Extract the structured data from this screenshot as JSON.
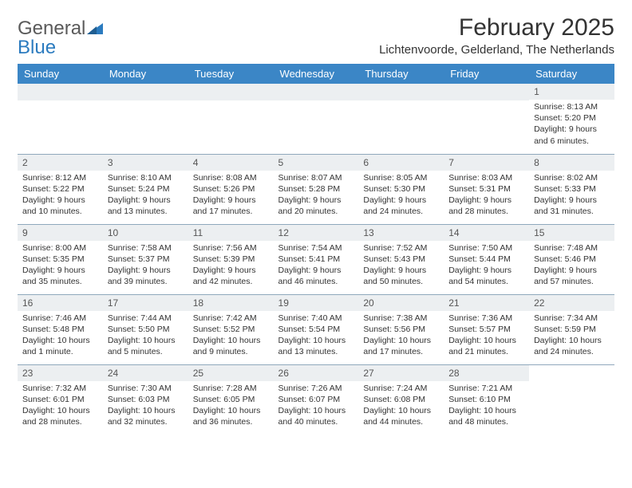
{
  "logo": {
    "part1": "General",
    "part2": "Blue"
  },
  "header": {
    "title": "February 2025",
    "location": "Lichtenvoorde, Gelderland, The Netherlands"
  },
  "style": {
    "header_bg": "#3b86c6",
    "header_fg": "#ffffff",
    "daynum_bg": "#eceff1",
    "row_border": "#8fa8bc",
    "logo_gray": "#5a5a5a",
    "logo_blue": "#2b7bbf"
  },
  "weekdays": [
    "Sunday",
    "Monday",
    "Tuesday",
    "Wednesday",
    "Thursday",
    "Friday",
    "Saturday"
  ],
  "leading_blanks": 6,
  "days": [
    {
      "n": "1",
      "sunrise": "8:13 AM",
      "sunset": "5:20 PM",
      "daylight": "9 hours and 6 minutes."
    },
    {
      "n": "2",
      "sunrise": "8:12 AM",
      "sunset": "5:22 PM",
      "daylight": "9 hours and 10 minutes."
    },
    {
      "n": "3",
      "sunrise": "8:10 AM",
      "sunset": "5:24 PM",
      "daylight": "9 hours and 13 minutes."
    },
    {
      "n": "4",
      "sunrise": "8:08 AM",
      "sunset": "5:26 PM",
      "daylight": "9 hours and 17 minutes."
    },
    {
      "n": "5",
      "sunrise": "8:07 AM",
      "sunset": "5:28 PM",
      "daylight": "9 hours and 20 minutes."
    },
    {
      "n": "6",
      "sunrise": "8:05 AM",
      "sunset": "5:30 PM",
      "daylight": "9 hours and 24 minutes."
    },
    {
      "n": "7",
      "sunrise": "8:03 AM",
      "sunset": "5:31 PM",
      "daylight": "9 hours and 28 minutes."
    },
    {
      "n": "8",
      "sunrise": "8:02 AM",
      "sunset": "5:33 PM",
      "daylight": "9 hours and 31 minutes."
    },
    {
      "n": "9",
      "sunrise": "8:00 AM",
      "sunset": "5:35 PM",
      "daylight": "9 hours and 35 minutes."
    },
    {
      "n": "10",
      "sunrise": "7:58 AM",
      "sunset": "5:37 PM",
      "daylight": "9 hours and 39 minutes."
    },
    {
      "n": "11",
      "sunrise": "7:56 AM",
      "sunset": "5:39 PM",
      "daylight": "9 hours and 42 minutes."
    },
    {
      "n": "12",
      "sunrise": "7:54 AM",
      "sunset": "5:41 PM",
      "daylight": "9 hours and 46 minutes."
    },
    {
      "n": "13",
      "sunrise": "7:52 AM",
      "sunset": "5:43 PM",
      "daylight": "9 hours and 50 minutes."
    },
    {
      "n": "14",
      "sunrise": "7:50 AM",
      "sunset": "5:44 PM",
      "daylight": "9 hours and 54 minutes."
    },
    {
      "n": "15",
      "sunrise": "7:48 AM",
      "sunset": "5:46 PM",
      "daylight": "9 hours and 57 minutes."
    },
    {
      "n": "16",
      "sunrise": "7:46 AM",
      "sunset": "5:48 PM",
      "daylight": "10 hours and 1 minute."
    },
    {
      "n": "17",
      "sunrise": "7:44 AM",
      "sunset": "5:50 PM",
      "daylight": "10 hours and 5 minutes."
    },
    {
      "n": "18",
      "sunrise": "7:42 AM",
      "sunset": "5:52 PM",
      "daylight": "10 hours and 9 minutes."
    },
    {
      "n": "19",
      "sunrise": "7:40 AM",
      "sunset": "5:54 PM",
      "daylight": "10 hours and 13 minutes."
    },
    {
      "n": "20",
      "sunrise": "7:38 AM",
      "sunset": "5:56 PM",
      "daylight": "10 hours and 17 minutes."
    },
    {
      "n": "21",
      "sunrise": "7:36 AM",
      "sunset": "5:57 PM",
      "daylight": "10 hours and 21 minutes."
    },
    {
      "n": "22",
      "sunrise": "7:34 AM",
      "sunset": "5:59 PM",
      "daylight": "10 hours and 24 minutes."
    },
    {
      "n": "23",
      "sunrise": "7:32 AM",
      "sunset": "6:01 PM",
      "daylight": "10 hours and 28 minutes."
    },
    {
      "n": "24",
      "sunrise": "7:30 AM",
      "sunset": "6:03 PM",
      "daylight": "10 hours and 32 minutes."
    },
    {
      "n": "25",
      "sunrise": "7:28 AM",
      "sunset": "6:05 PM",
      "daylight": "10 hours and 36 minutes."
    },
    {
      "n": "26",
      "sunrise": "7:26 AM",
      "sunset": "6:07 PM",
      "daylight": "10 hours and 40 minutes."
    },
    {
      "n": "27",
      "sunrise": "7:24 AM",
      "sunset": "6:08 PM",
      "daylight": "10 hours and 44 minutes."
    },
    {
      "n": "28",
      "sunrise": "7:21 AM",
      "sunset": "6:10 PM",
      "daylight": "10 hours and 48 minutes."
    }
  ],
  "labels": {
    "sunrise": "Sunrise:",
    "sunset": "Sunset:",
    "daylight": "Daylight:"
  }
}
